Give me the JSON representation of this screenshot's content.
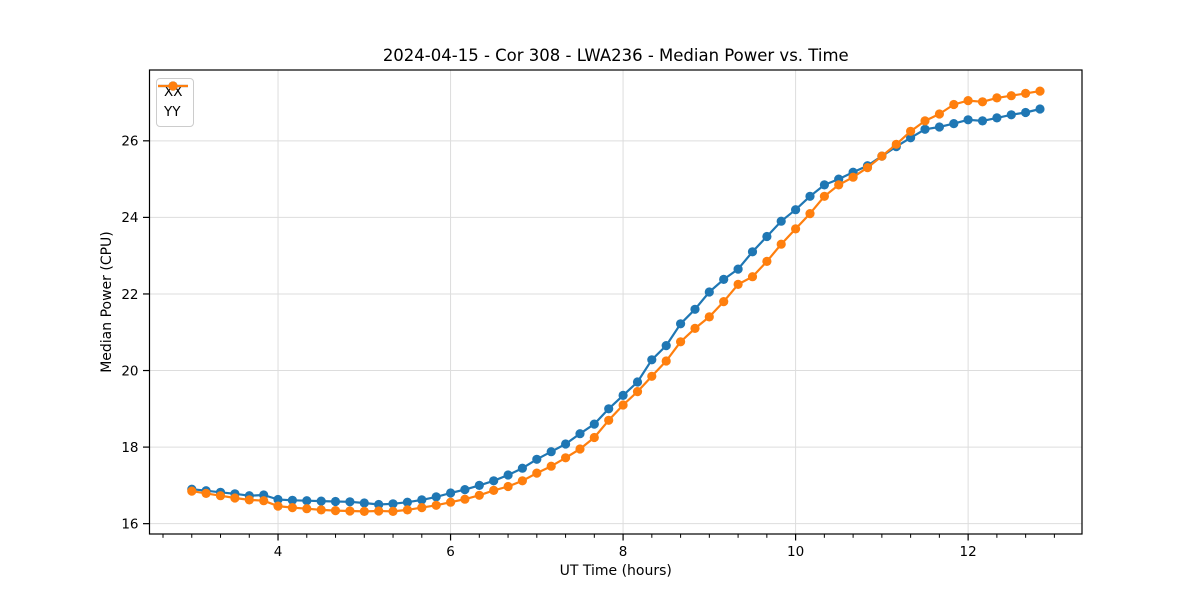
{
  "chart_data": {
    "type": "line",
    "title": "2024-04-15 - Cor 308 - LWA236 - Median Power vs. Time",
    "xlabel": "UT Time (hours)",
    "ylabel": "Median Power (CPU)",
    "xlim": [
      2.51,
      13.32
    ],
    "ylim": [
      15.73,
      27.85
    ],
    "xticks": [
      4,
      6,
      8,
      10,
      12
    ],
    "yticks": [
      16,
      18,
      20,
      22,
      24,
      26
    ],
    "x_minor_tick_step": 0.33333,
    "grid": true,
    "grid_color": "#dddddd",
    "spine_color": "#000000",
    "legend_position": "upper left",
    "marker": "circle",
    "x": [
      3.0,
      3.1667,
      3.3333,
      3.5,
      3.6667,
      3.8333,
      4.0,
      4.1667,
      4.3333,
      4.5,
      4.6667,
      4.8333,
      5.0,
      5.1667,
      5.3333,
      5.5,
      5.6667,
      5.8333,
      6.0,
      6.1667,
      6.3333,
      6.5,
      6.6667,
      6.8333,
      7.0,
      7.1667,
      7.3333,
      7.5,
      7.6667,
      7.8333,
      8.0,
      8.1667,
      8.3333,
      8.5,
      8.6667,
      8.8333,
      9.0,
      9.1667,
      9.3333,
      9.5,
      9.6667,
      9.8333,
      10.0,
      10.1667,
      10.3333,
      10.5,
      10.6667,
      10.8333,
      11.0,
      11.1667,
      11.3333,
      11.5,
      11.6667,
      11.8333,
      12.0,
      12.1667,
      12.3333,
      12.5,
      12.6667,
      12.8333
    ],
    "series": [
      {
        "name": "XX",
        "color": "#1f77b4",
        "values": [
          16.9,
          16.86,
          16.82,
          16.78,
          16.73,
          16.75,
          16.63,
          16.61,
          16.6,
          16.59,
          16.58,
          16.57,
          16.54,
          16.5,
          16.52,
          16.56,
          16.62,
          16.7,
          16.8,
          16.89,
          17.0,
          17.12,
          17.27,
          17.45,
          17.68,
          17.88,
          18.08,
          18.35,
          18.6,
          19.0,
          19.35,
          19.7,
          20.28,
          20.65,
          21.22,
          21.6,
          22.05,
          22.38,
          22.65,
          23.1,
          23.5,
          23.9,
          24.2,
          24.55,
          24.85,
          25.0,
          25.18,
          25.35,
          25.6,
          25.85,
          26.08,
          26.3,
          26.36,
          26.45,
          26.55,
          26.52,
          26.6,
          26.68,
          26.74,
          26.83
        ]
      },
      {
        "name": "YY",
        "color": "#ff7f0e",
        "values": [
          16.85,
          16.79,
          16.73,
          16.67,
          16.62,
          16.6,
          16.46,
          16.42,
          16.39,
          16.36,
          16.34,
          16.33,
          16.32,
          16.33,
          16.32,
          16.36,
          16.42,
          16.48,
          16.56,
          16.64,
          16.74,
          16.87,
          16.97,
          17.12,
          17.32,
          17.5,
          17.72,
          17.95,
          18.25,
          18.7,
          19.1,
          19.45,
          19.85,
          20.25,
          20.75,
          21.1,
          21.4,
          21.8,
          22.25,
          22.45,
          22.85,
          23.3,
          23.7,
          24.1,
          24.55,
          24.85,
          25.05,
          25.3,
          25.6,
          25.91,
          26.25,
          26.52,
          26.7,
          26.95,
          27.05,
          27.02,
          27.12,
          27.18,
          27.24,
          27.3
        ]
      }
    ]
  }
}
